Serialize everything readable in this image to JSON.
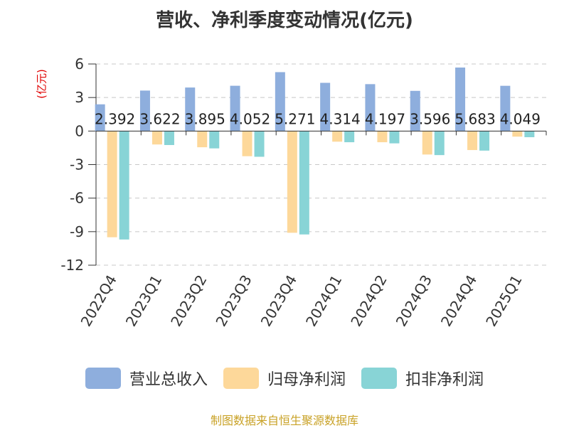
{
  "chart_data": {
    "type": "bar",
    "title": "营收、净利季度变动情况(亿元)",
    "unit_label": "(亿元)",
    "categories": [
      "2022Q4",
      "2023Q1",
      "2023Q2",
      "2023Q3",
      "2023Q4",
      "2024Q1",
      "2024Q2",
      "2024Q3",
      "2024Q4",
      "2025Q1"
    ],
    "series": [
      {
        "name": "营业总收入",
        "color": "#8eaedd",
        "values": [
          2.392,
          3.622,
          3.895,
          4.052,
          5.271,
          4.314,
          4.197,
          3.596,
          5.683,
          4.049
        ],
        "show_labels": true
      },
      {
        "name": "归母净利润",
        "color": "#fdd89a",
        "values": [
          -9.5,
          -1.2,
          -1.45,
          -2.25,
          -9.1,
          -0.95,
          -1.0,
          -2.1,
          -1.7,
          -0.5
        ],
        "show_labels": false
      },
      {
        "name": "扣非净利润",
        "color": "#88d4d6",
        "values": [
          -9.7,
          -1.25,
          -1.55,
          -2.3,
          -9.25,
          -1.0,
          -1.1,
          -2.15,
          -1.75,
          -0.55
        ],
        "show_labels": false
      }
    ],
    "value_labels": [
      "2.392",
      "3.622",
      "3.895",
      "4.052",
      "5.271",
      "4.314",
      "4.197",
      "3.596",
      "5.683",
      "4.049"
    ],
    "ylim": [
      -12,
      6
    ],
    "yticks": [
      6,
      3,
      0,
      -3,
      -6,
      -9,
      -12
    ],
    "grid": true,
    "legend_position": "bottom"
  },
  "source_text": "制图数据来自恒生聚源数据库"
}
